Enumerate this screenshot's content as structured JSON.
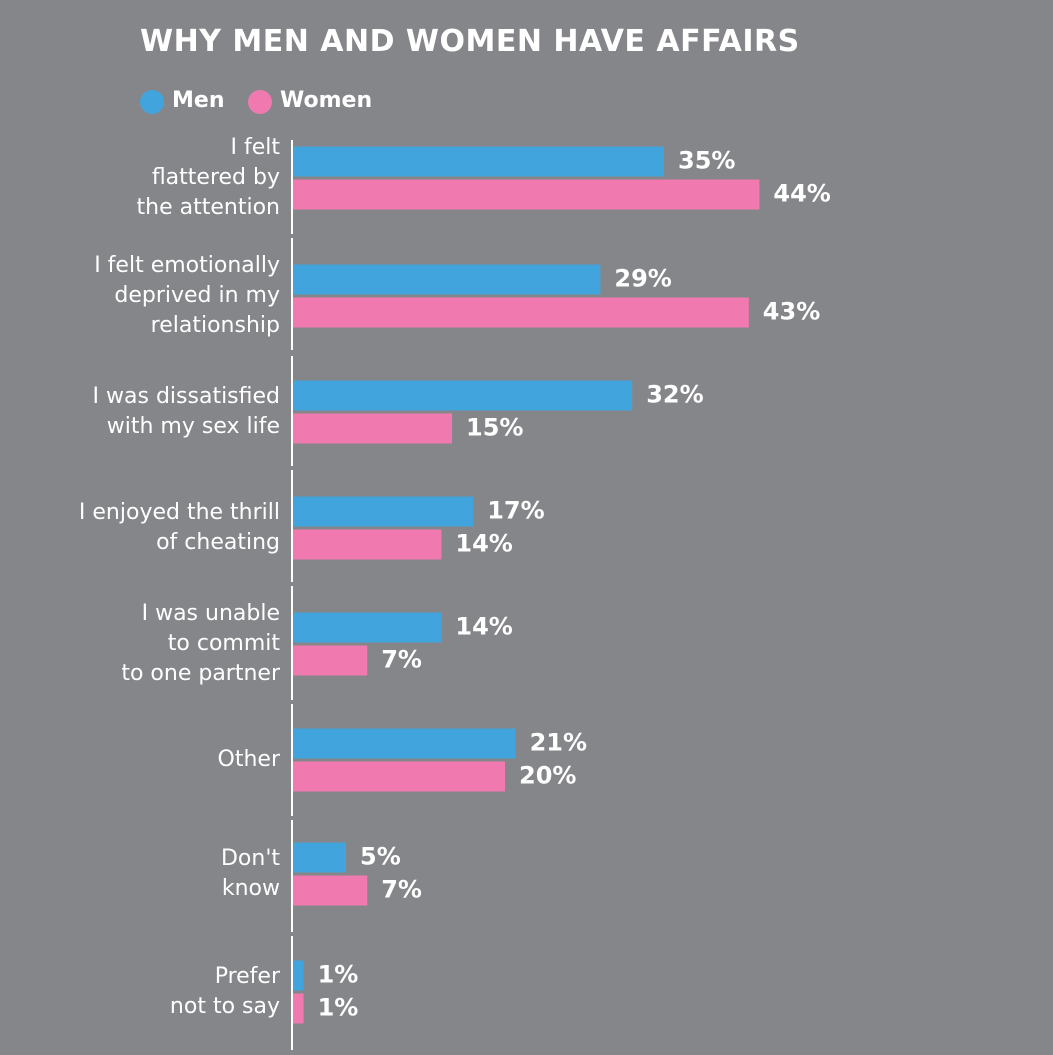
{
  "colors": {
    "background": "#85868a",
    "men": "#42a4dc",
    "women": "#f07aaf",
    "text": "#ffffff",
    "axis": "#ffffff"
  },
  "chart_data": {
    "type": "bar",
    "orientation": "horizontal",
    "title": "WHY MEN AND WOMEN HAVE AFFAIRS",
    "legend_position": "top-left",
    "categories": [
      [
        "I felt",
        "flattered by",
        "the attention"
      ],
      [
        "I felt emotionally",
        "deprived in my",
        "relationship"
      ],
      [
        "I was dissatisfied",
        "with my sex life"
      ],
      [
        "I enjoyed the thrill",
        "of cheating"
      ],
      [
        "I was unable",
        "to commit",
        "to one partner"
      ],
      [
        "Other"
      ],
      [
        "Don't",
        "know"
      ],
      [
        "Prefer",
        "not to say"
      ]
    ],
    "series": [
      {
        "name": "Men",
        "color": "#42a4dc",
        "values": [
          35,
          29,
          32,
          17,
          14,
          21,
          5,
          1
        ],
        "labels": [
          "35%",
          "29%",
          "32%",
          "17%",
          "14%",
          "21%",
          "5%",
          "1%"
        ]
      },
      {
        "name": "Women",
        "color": "#f07aaf",
        "values": [
          44,
          43,
          15,
          14,
          7,
          20,
          7,
          1
        ],
        "labels": [
          "44%",
          "43%",
          "15%",
          "14%",
          "7%",
          "20%",
          "7%",
          "1%"
        ]
      }
    ],
    "unit": "%",
    "xlim": [
      0,
      100
    ],
    "grid": false
  }
}
